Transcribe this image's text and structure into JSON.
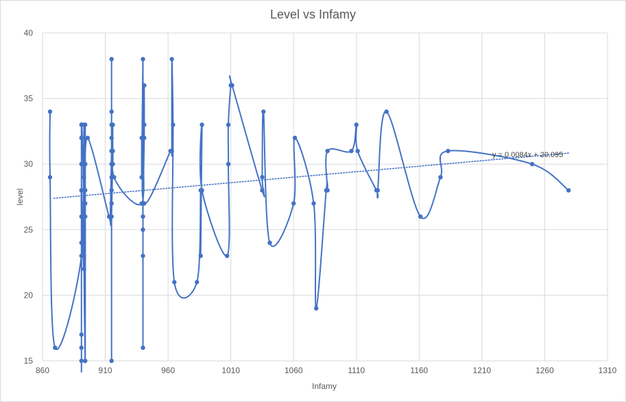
{
  "chart_data": {
    "type": "scatter",
    "title": "Level vs Infamy",
    "xlabel": "Infamy",
    "ylabel": "level",
    "xlim": [
      860,
      1310
    ],
    "ylim": [
      15,
      40
    ],
    "x_ticks": [
      860,
      910,
      960,
      1010,
      1060,
      1110,
      1160,
      1210,
      1260,
      1310
    ],
    "y_ticks": [
      15,
      20,
      25,
      30,
      35,
      40
    ],
    "grid": true,
    "legend": "none",
    "series_color": "#4472c4",
    "gridline_color": "#d9d9d9",
    "trendline": {
      "label": "y = 0.0084x + 20.095",
      "slope": 0.0084,
      "intercept": 20.095,
      "x_range": [
        869,
        1279
      ],
      "style": "dotted"
    },
    "series": [
      {
        "smoothed": true,
        "points": [
          [
            866,
            34
          ],
          [
            866,
            29
          ],
          [
            870,
            16
          ],
          [
            891,
            23
          ],
          [
            891,
            33
          ],
          [
            891,
            15
          ],
          [
            891,
            17
          ],
          [
            891,
            16
          ],
          [
            891,
            24
          ],
          [
            891,
            30
          ],
          [
            891,
            32
          ],
          [
            891,
            26
          ],
          [
            891,
            28
          ],
          [
            893,
            22
          ],
          [
            893,
            33
          ],
          [
            893,
            27
          ],
          [
            893,
            25
          ],
          [
            893,
            31
          ],
          [
            893,
            24
          ],
          [
            893,
            29
          ],
          [
            893,
            30
          ],
          [
            893,
            23
          ],
          [
            894,
            15
          ],
          [
            894,
            30
          ],
          [
            894,
            27
          ],
          [
            894,
            26
          ],
          [
            894,
            33
          ],
          [
            894,
            28
          ],
          [
            896,
            32
          ],
          [
            913,
            26
          ],
          [
            914,
            26
          ],
          [
            915,
            31
          ],
          [
            915,
            28
          ],
          [
            915,
            38
          ],
          [
            915,
            33
          ],
          [
            915,
            30
          ],
          [
            915,
            15
          ],
          [
            915,
            27
          ],
          [
            915,
            31
          ],
          [
            915,
            34
          ],
          [
            915,
            32
          ],
          [
            915,
            29
          ],
          [
            915,
            26
          ],
          [
            916,
            31
          ],
          [
            916,
            30
          ],
          [
            916,
            33
          ],
          [
            917,
            29
          ],
          [
            939,
            27
          ],
          [
            939,
            32
          ],
          [
            939,
            29
          ],
          [
            940,
            38
          ],
          [
            940,
            27
          ],
          [
            940,
            16
          ],
          [
            940,
            23
          ],
          [
            940,
            25
          ],
          [
            940,
            26
          ],
          [
            940,
            27
          ],
          [
            941,
            32
          ],
          [
            941,
            36
          ],
          [
            941,
            33
          ],
          [
            941,
            27
          ],
          [
            962,
            31
          ],
          [
            963,
            31
          ],
          [
            963,
            38
          ],
          [
            964,
            33
          ],
          [
            965,
            21
          ],
          [
            983,
            21
          ],
          [
            986,
            28
          ],
          [
            986,
            23
          ],
          [
            987,
            33
          ],
          [
            987,
            28
          ],
          [
            1007,
            23
          ],
          [
            1008,
            30
          ],
          [
            1008,
            33
          ],
          [
            1010,
            36
          ],
          [
            1011,
            36
          ],
          [
            1035,
            28
          ],
          [
            1035,
            29
          ],
          [
            1036,
            34
          ],
          [
            1041,
            24
          ],
          [
            1060,
            27
          ],
          [
            1061,
            32
          ],
          [
            1076,
            27
          ],
          [
            1078,
            19
          ],
          [
            1086,
            28
          ],
          [
            1087,
            28
          ],
          [
            1087,
            31
          ],
          [
            1106,
            31
          ],
          [
            1110,
            33
          ],
          [
            1111,
            31
          ],
          [
            1126,
            28
          ],
          [
            1127,
            28
          ],
          [
            1134,
            34
          ],
          [
            1161,
            26
          ],
          [
            1177,
            29
          ],
          [
            1183,
            31
          ],
          [
            1250,
            30
          ],
          [
            1279,
            28
          ]
        ]
      }
    ]
  }
}
